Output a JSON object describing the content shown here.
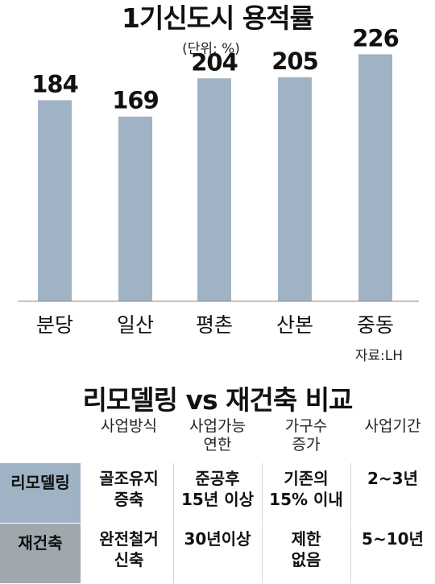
{
  "chart_data": {
    "type": "bar",
    "title": "1기신도시 용적률",
    "subtitle": "(단위: %)",
    "categories": [
      "분당",
      "일산",
      "평촌",
      "산본",
      "중동"
    ],
    "values": [
      184,
      169,
      204,
      205,
      226
    ],
    "source": "자료:LH",
    "bar_color": "#9fb3c5",
    "ylim": [
      0,
      230
    ]
  },
  "table": {
    "title": "리모델링 vs 재건축 비교",
    "headers": [
      [
        "사업방식"
      ],
      [
        "사업가능",
        "연한"
      ],
      [
        "가구수",
        "증가"
      ],
      [
        "사업기간"
      ]
    ],
    "rows": [
      {
        "label": "리모델링",
        "bg": "#9fb3c5",
        "cells": [
          [
            "골조유지",
            "증축"
          ],
          [
            "준공후",
            "15년 이상"
          ],
          [
            "기존의",
            "15% 이내"
          ],
          [
            "2~3년"
          ]
        ]
      },
      {
        "label": "재건축",
        "bg": "#9fa9ad",
        "cells": [
          [
            "완전철거",
            "신축"
          ],
          [
            "30년이상"
          ],
          [
            "제한",
            "없음"
          ],
          [
            "5~10년"
          ]
        ]
      }
    ]
  }
}
